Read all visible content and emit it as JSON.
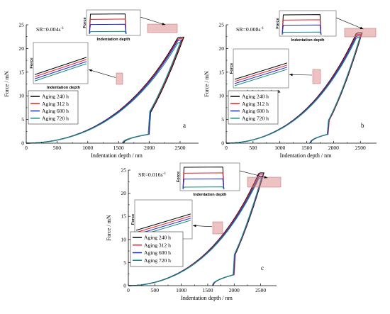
{
  "chart_data": [
    {
      "type": "line",
      "panel_letter": "a",
      "strain_rate": {
        "prefix": "SR=0.004s",
        "exponent": "-1"
      },
      "xlabel": "Indentation depth / nm",
      "ylabel": "Force / mN",
      "xlim": [
        0,
        2800
      ],
      "ylim": [
        0,
        25
      ],
      "xticks": [
        0,
        500,
        1000,
        1500,
        2000,
        2500
      ],
      "yticks": [
        0,
        5,
        10,
        15,
        20,
        25
      ],
      "x_tick_labels": [
        "0",
        "500",
        "1000",
        "1500",
        "2000",
        "2500"
      ],
      "y_tick_labels": [
        "0",
        "5",
        "10",
        "15",
        "20",
        "25"
      ],
      "grid": false,
      "legend_position": "lower-left",
      "max_depth": [
        2560,
        2540,
        2520,
        2505
      ],
      "max_force": 22.4,
      "hold_force": [
        22.4,
        22.1,
        21.8,
        21.3
      ],
      "hold_start": 2460,
      "residual_depth": [
        1580,
        1570,
        1565,
        1560
      ],
      "kink_depth": 2000,
      "kink_force": 2.0,
      "inset_top_label": "Force",
      "inset_bottom_label": "Indentation depth",
      "series": [
        {
          "name": "Aging 240 h",
          "color": "#000000"
        },
        {
          "name": "Aging 312 h",
          "color": "#e8202a"
        },
        {
          "name": "Aging 600 h",
          "color": "#1f2ad6"
        },
        {
          "name": "Aging 720 h",
          "color": "#138a86"
        }
      ]
    },
    {
      "type": "line",
      "panel_letter": "b",
      "strain_rate": {
        "prefix": "SR=0.008s",
        "exponent": "-1"
      },
      "xlabel": "Indentation depth / nm",
      "ylabel": "Force / mN",
      "xlim": [
        0,
        2800
      ],
      "ylim": [
        0,
        25
      ],
      "xticks": [
        0,
        500,
        1000,
        1500,
        2000,
        2500
      ],
      "yticks": [
        0,
        5,
        10,
        15,
        20,
        25
      ],
      "x_tick_labels": [
        "0",
        "500",
        "1000",
        "1500",
        "2000",
        "2500"
      ],
      "y_tick_labels": [
        "0",
        "5",
        "10",
        "15",
        "20",
        "25"
      ],
      "grid": false,
      "legend_position": "lower-left",
      "max_depth": [
        2530,
        2515,
        2500,
        2490
      ],
      "max_force": 23.3,
      "hold_force": [
        23.3,
        23.0,
        22.7,
        22.3
      ],
      "hold_start": 2420,
      "residual_depth": [
        1570,
        1565,
        1560,
        1555
      ],
      "kink_depth": 1900,
      "kink_force": 2.0,
      "inset_top_label": "Force",
      "inset_bottom_label": "Indentation depth",
      "series": [
        {
          "name": "Aging 240 h",
          "color": "#000000"
        },
        {
          "name": "Aging 312 h",
          "color": "#e8202a"
        },
        {
          "name": "Aging 600 h",
          "color": "#1f2ad6"
        },
        {
          "name": "Aging 720 h",
          "color": "#138a86"
        }
      ]
    },
    {
      "type": "line",
      "panel_letter": "c",
      "strain_rate": {
        "prefix": "SR=0.016s",
        "exponent": "-1"
      },
      "xlabel": "Indentation depth / nm",
      "ylabel": "Force / mN",
      "xlim": [
        0,
        2800
      ],
      "ylim": [
        0,
        25
      ],
      "xticks": [
        0,
        500,
        1000,
        1500,
        2000,
        2500
      ],
      "yticks": [
        0,
        5,
        10,
        15,
        20,
        25
      ],
      "x_tick_labels": [
        "0",
        "500",
        "1000",
        "1500",
        "2000",
        "2500"
      ],
      "y_tick_labels": [
        "0",
        "5",
        "10",
        "15",
        "20",
        "25"
      ],
      "grid": false,
      "legend_position": "lower-left",
      "max_depth": [
        2560,
        2545,
        2530,
        2515
      ],
      "max_force": 24.4,
      "hold_force": [
        24.4,
        24.1,
        23.7,
        23.3
      ],
      "hold_start": 2460,
      "residual_depth": [
        1600,
        1595,
        1590,
        1585
      ],
      "kink_depth": 2000,
      "kink_force": 2.5,
      "inset_top_label": "Force",
      "inset_bottom_label": "Indentation depth",
      "series": [
        {
          "name": "Aging 240 h",
          "color": "#000000"
        },
        {
          "name": "Aging 312 h",
          "color": "#e8202a"
        },
        {
          "name": "Aging 600 h",
          "color": "#1f2ad6"
        },
        {
          "name": "Aging 720 h",
          "color": "#138a86"
        }
      ]
    }
  ]
}
